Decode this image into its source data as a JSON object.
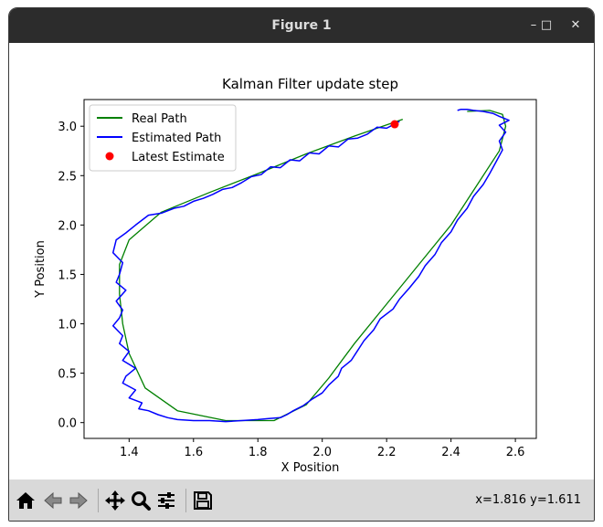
{
  "window": {
    "title": "Figure 1",
    "minimize": "–",
    "maximize": "□",
    "close": "✕"
  },
  "toolbar": {
    "buttons": [
      {
        "name": "home-button",
        "icon": "home-icon"
      },
      {
        "name": "back-button",
        "icon": "back-arrow-icon"
      },
      {
        "name": "forward-button",
        "icon": "forward-arrow-icon"
      },
      {
        "name": "pan-button",
        "icon": "move-icon"
      },
      {
        "name": "zoom-button",
        "icon": "magnifier-icon"
      },
      {
        "name": "configure-subplots-button",
        "icon": "sliders-icon"
      },
      {
        "name": "save-button",
        "icon": "floppy-disk-icon"
      }
    ],
    "coords": "x=1.816 y=1.611"
  },
  "chart_data": {
    "type": "line",
    "title": "Kalman Filter update step",
    "xlabel": "X Position",
    "ylabel": "Y Position",
    "xlim": [
      1.26,
      2.665
    ],
    "ylim": [
      -0.16,
      3.27
    ],
    "xticks": [
      1.4,
      1.6,
      1.8,
      2.0,
      2.2,
      2.4,
      2.6
    ],
    "yticks": [
      0.0,
      0.5,
      1.0,
      1.5,
      2.0,
      2.5,
      3.0
    ],
    "xtick_labels": [
      "1.4",
      "1.6",
      "1.8",
      "2.0",
      "2.2",
      "2.4",
      "2.6"
    ],
    "ytick_labels": [
      "0.0",
      "0.5",
      "1.0",
      "1.5",
      "2.0",
      "2.5",
      "3.0"
    ],
    "grid": false,
    "legend_position": "top-left",
    "series": [
      {
        "name": "Real Path",
        "color": "#008000",
        "x": [
          2.25,
          2.1,
          1.95,
          1.8,
          1.65,
          1.5,
          1.4,
          1.37,
          1.37,
          1.38,
          1.4,
          1.45,
          1.55,
          1.7,
          1.85,
          1.95,
          2.02,
          2.1,
          2.2,
          2.3,
          2.4,
          2.48,
          2.55,
          2.57,
          2.56,
          2.52,
          2.45
        ],
        "y": [
          3.07,
          2.9,
          2.72,
          2.52,
          2.33,
          2.13,
          1.85,
          1.6,
          1.3,
          1.0,
          0.7,
          0.35,
          0.12,
          0.02,
          0.02,
          0.18,
          0.45,
          0.8,
          1.2,
          1.6,
          2.0,
          2.4,
          2.75,
          3.0,
          3.12,
          3.16,
          3.15
        ]
      },
      {
        "name": "Estimated Path",
        "color": "#0000ff",
        "x": [
          2.24,
          2.2,
          2.17,
          2.14,
          2.11,
          2.08,
          2.05,
          2.02,
          1.99,
          1.96,
          1.93,
          1.9,
          1.87,
          1.84,
          1.81,
          1.78,
          1.75,
          1.72,
          1.69,
          1.66,
          1.63,
          1.6,
          1.57,
          1.54,
          1.5,
          1.46,
          1.42,
          1.39,
          1.36,
          1.35,
          1.38,
          1.37,
          1.36,
          1.39,
          1.36,
          1.38,
          1.37,
          1.35,
          1.38,
          1.37,
          1.4,
          1.38,
          1.42,
          1.39,
          1.38,
          1.42,
          1.4,
          1.44,
          1.43,
          1.46,
          1.49,
          1.52,
          1.55,
          1.6,
          1.65,
          1.7,
          1.75,
          1.8,
          1.83,
          1.87,
          1.89,
          1.91,
          1.94,
          1.97,
          2.0,
          2.02,
          2.05,
          2.06,
          2.09,
          2.11,
          2.13,
          2.16,
          2.18,
          2.22,
          2.24,
          2.27,
          2.3,
          2.32,
          2.35,
          2.37,
          2.4,
          2.42,
          2.45,
          2.47,
          2.5,
          2.52,
          2.54,
          2.56,
          2.55,
          2.57,
          2.55,
          2.58,
          2.55,
          2.53,
          2.5,
          2.47,
          2.45,
          2.43,
          2.42
        ],
        "y": [
          3.05,
          2.98,
          2.99,
          2.92,
          2.88,
          2.87,
          2.79,
          2.8,
          2.72,
          2.73,
          2.65,
          2.66,
          2.58,
          2.59,
          2.51,
          2.49,
          2.43,
          2.38,
          2.36,
          2.31,
          2.27,
          2.24,
          2.19,
          2.17,
          2.12,
          2.1,
          2.0,
          1.92,
          1.85,
          1.72,
          1.62,
          1.5,
          1.42,
          1.34,
          1.23,
          1.14,
          1.06,
          0.98,
          0.88,
          0.8,
          0.72,
          0.63,
          0.55,
          0.47,
          0.4,
          0.33,
          0.25,
          0.2,
          0.14,
          0.12,
          0.08,
          0.05,
          0.03,
          0.02,
          0.02,
          0.01,
          0.02,
          0.03,
          0.04,
          0.05,
          0.08,
          0.12,
          0.17,
          0.24,
          0.3,
          0.38,
          0.47,
          0.55,
          0.63,
          0.73,
          0.83,
          0.94,
          1.05,
          1.15,
          1.25,
          1.36,
          1.48,
          1.59,
          1.7,
          1.82,
          1.93,
          2.05,
          2.17,
          2.29,
          2.41,
          2.52,
          2.64,
          2.76,
          2.85,
          2.94,
          3.01,
          3.06,
          3.1,
          3.13,
          3.15,
          3.16,
          3.17,
          3.17,
          3.16
        ]
      }
    ],
    "markers": [
      {
        "name": "Latest Estimate",
        "color": "#ff0000",
        "x": 2.225,
        "y": 3.02
      }
    ]
  }
}
